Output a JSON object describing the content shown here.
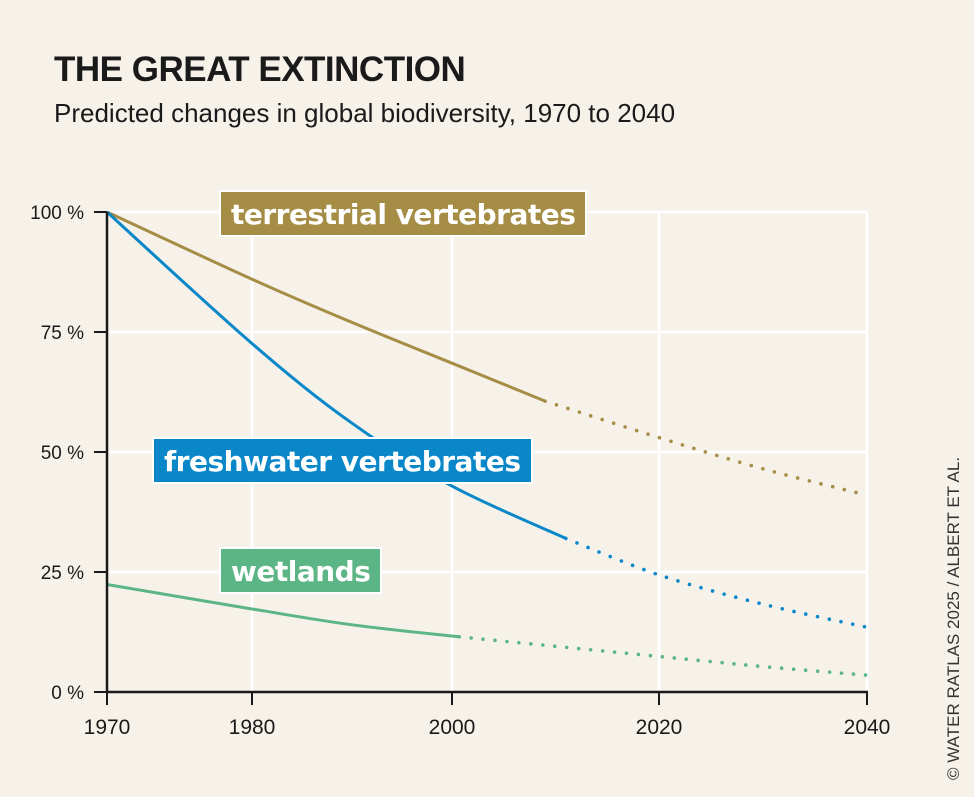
{
  "title": "THE GREAT EXTINCTION",
  "subtitle": "Predicted changes in global biodiversity, 1970 to 2040",
  "credit": "© WATER RATLAS 2025 / ALBERT ET AL.",
  "chart_data": {
    "type": "line",
    "title": "THE GREAT EXTINCTION",
    "subtitle": "Predicted changes in global biodiversity, 1970 to 2040",
    "xlabel": "",
    "ylabel": "",
    "xlim": [
      1970,
      2040
    ],
    "ylim": [
      0,
      100
    ],
    "x_ticks": [
      "1970",
      "1980",
      "2000",
      "2020",
      "2040"
    ],
    "y_ticks": [
      "0 %",
      "25 %",
      "50 %",
      "75 %",
      "100 %"
    ],
    "grid": true,
    "series": [
      {
        "name": "terrestrial vertebrates",
        "color": "#a68d45",
        "observed": [
          [
            1970,
            100
          ],
          [
            1980,
            86
          ],
          [
            1990,
            77
          ],
          [
            2000,
            68.5
          ],
          [
            2009,
            60.6
          ]
        ],
        "projected": [
          [
            2009,
            60.6
          ],
          [
            2020,
            53
          ],
          [
            2030,
            46.5
          ],
          [
            2040,
            41
          ]
        ]
      },
      {
        "name": "freshwater vertebrates",
        "color": "#0a87c9",
        "observed": [
          [
            1970,
            100
          ],
          [
            1980,
            72.6
          ],
          [
            1990,
            56
          ],
          [
            2000,
            42.9
          ],
          [
            2011,
            32
          ]
        ],
        "projected": [
          [
            2011,
            32
          ],
          [
            2020,
            24.4
          ],
          [
            2030,
            18.3
          ],
          [
            2040,
            13.5
          ]
        ]
      },
      {
        "name": "wetlands",
        "color": "#5cb585",
        "observed": [
          [
            1970,
            22.4
          ],
          [
            1980,
            17.3
          ],
          [
            1990,
            14
          ],
          [
            2000.7,
            11.5
          ]
        ],
        "projected": [
          [
            2000.7,
            11.5
          ],
          [
            2020,
            7.4
          ],
          [
            2030,
            5.3
          ],
          [
            2040,
            3.5
          ]
        ]
      }
    ]
  }
}
